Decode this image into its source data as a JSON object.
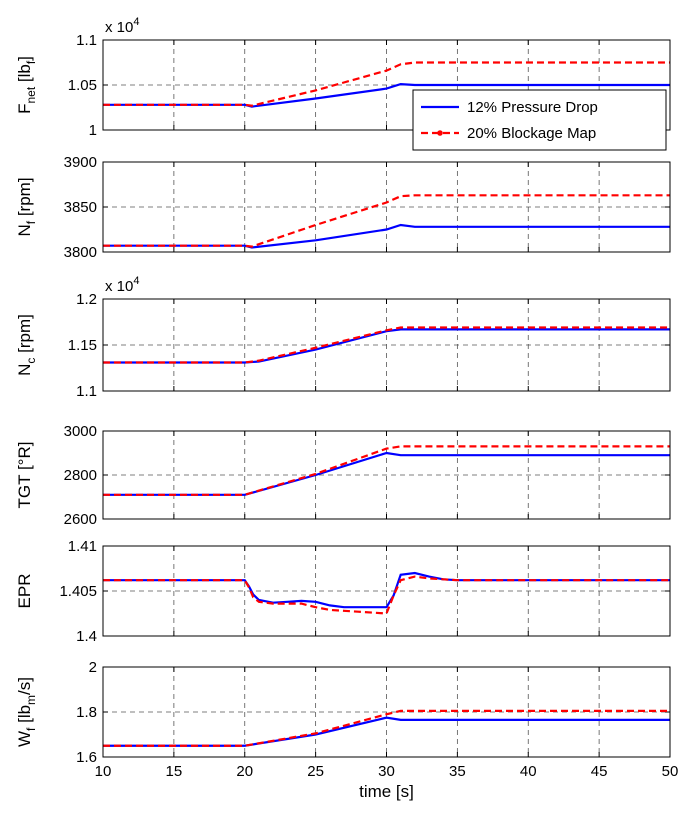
{
  "chart_data": [
    {
      "type": "line",
      "ylabel": "F",
      "ylabel_sub": "net",
      "ylabel_unit_pre": " [lb",
      "ylabel_unit_sub": "f",
      "ylabel_unit_post": "]",
      "exponent_label": "x 10",
      "exponent_power": "4",
      "xlim": [
        10,
        50
      ],
      "ylim": [
        1.0,
        1.1
      ],
      "yticks": [
        "1",
        "1.05",
        "1.1"
      ],
      "ytick_values": [
        1.0,
        1.05,
        1.1
      ],
      "grid": true,
      "legend": "inside-bottom-right",
      "series": [
        {
          "name": "12% Pressure Drop",
          "color": "#0000ff",
          "dash": "solid",
          "x": [
            10,
            20,
            20.5,
            25,
            30,
            31,
            32,
            50
          ],
          "y": [
            1.028,
            1.028,
            1.026,
            1.035,
            1.046,
            1.051,
            1.05,
            1.05
          ]
        },
        {
          "name": "20% Blockage Map",
          "color": "#ff0000",
          "dash": "dashed",
          "x": [
            10,
            20,
            20.5,
            25,
            30,
            31,
            32,
            50
          ],
          "y": [
            1.028,
            1.028,
            1.027,
            1.044,
            1.066,
            1.073,
            1.075,
            1.075
          ]
        }
      ]
    },
    {
      "type": "line",
      "ylabel": "N",
      "ylabel_sub": "f",
      "ylabel_unit_pre": " [rpm]",
      "xlim": [
        10,
        50
      ],
      "ylim": [
        3800,
        3900
      ],
      "yticks": [
        "3800",
        "3850",
        "3900"
      ],
      "ytick_values": [
        3800,
        3850,
        3900
      ],
      "grid": true,
      "series": [
        {
          "name": "12% Pressure Drop",
          "color": "#0000ff",
          "dash": "solid",
          "x": [
            10,
            20,
            20.5,
            25,
            30,
            31,
            32,
            50
          ],
          "y": [
            3807,
            3807,
            3805,
            3813,
            3825,
            3830,
            3828,
            3828
          ]
        },
        {
          "name": "20% Blockage Map",
          "color": "#ff0000",
          "dash": "dashed",
          "x": [
            10,
            20,
            20.5,
            25,
            30,
            31,
            32,
            50
          ],
          "y": [
            3807,
            3807,
            3806,
            3830,
            3855,
            3862,
            3863,
            3863
          ]
        }
      ]
    },
    {
      "type": "line",
      "ylabel": "N",
      "ylabel_sub": "c",
      "ylabel_unit_pre": " [rpm]",
      "exponent_label": "x 10",
      "exponent_power": "4",
      "xlim": [
        10,
        50
      ],
      "ylim": [
        1.1,
        1.2
      ],
      "yticks": [
        "1.1",
        "1.15",
        "1.2"
      ],
      "ytick_values": [
        1.1,
        1.15,
        1.2
      ],
      "grid": true,
      "series": [
        {
          "name": "12% Pressure Drop",
          "color": "#0000ff",
          "dash": "solid",
          "x": [
            10,
            20,
            21,
            25,
            30,
            31,
            50
          ],
          "y": [
            1.131,
            1.131,
            1.132,
            1.145,
            1.165,
            1.167,
            1.167
          ]
        },
        {
          "name": "20% Blockage Map",
          "color": "#ff0000",
          "dash": "dashed",
          "x": [
            10,
            20,
            21,
            25,
            30,
            31,
            50
          ],
          "y": [
            1.131,
            1.131,
            1.133,
            1.147,
            1.166,
            1.169,
            1.169
          ]
        }
      ]
    },
    {
      "type": "line",
      "ylabel": "TGT [",
      "ylabel_sub": "",
      "ylabel_unit_pre": "°R]",
      "xlim": [
        10,
        50
      ],
      "ylim": [
        2600,
        3000
      ],
      "yticks": [
        "2600",
        "2800",
        "3000"
      ],
      "ytick_values": [
        2600,
        2800,
        3000
      ],
      "grid": true,
      "series": [
        {
          "name": "12% Pressure Drop",
          "color": "#0000ff",
          "dash": "solid",
          "x": [
            10,
            20,
            25,
            30,
            31,
            50
          ],
          "y": [
            2710,
            2710,
            2800,
            2900,
            2890,
            2890
          ]
        },
        {
          "name": "20% Blockage Map",
          "color": "#ff0000",
          "dash": "dashed",
          "x": [
            10,
            20,
            25,
            30,
            31,
            50
          ],
          "y": [
            2710,
            2710,
            2805,
            2920,
            2930,
            2930
          ]
        }
      ]
    },
    {
      "type": "line",
      "ylabel": "EPR",
      "ylabel_sub": "",
      "ylabel_unit_pre": "",
      "xlim": [
        10,
        50
      ],
      "ylim": [
        1.4,
        1.41
      ],
      "yticks": [
        "1.4",
        "1.405",
        "1.41"
      ],
      "ytick_values": [
        1.4,
        1.405,
        1.41
      ],
      "grid": true,
      "series": [
        {
          "name": "12% Pressure Drop",
          "color": "#0000ff",
          "dash": "solid",
          "x": [
            10,
            20,
            20.3,
            20.6,
            21,
            22,
            23,
            24,
            25,
            26,
            27,
            28,
            29,
            30,
            30.5,
            31,
            32,
            33,
            34,
            35,
            50
          ],
          "y": [
            1.4062,
            1.4062,
            1.4055,
            1.4046,
            1.404,
            1.4037,
            1.4038,
            1.4039,
            1.4038,
            1.4034,
            1.4032,
            1.4032,
            1.4032,
            1.4032,
            1.4045,
            1.4068,
            1.407,
            1.4066,
            1.4063,
            1.4062,
            1.4062
          ]
        },
        {
          "name": "20% Blockage Map",
          "color": "#ff0000",
          "dash": "dashed",
          "x": [
            10,
            20,
            20.3,
            20.6,
            21,
            22,
            23,
            24,
            25,
            26,
            27,
            28,
            29,
            30,
            30.5,
            31,
            32,
            33,
            34,
            35,
            50
          ],
          "y": [
            1.4062,
            1.4062,
            1.4054,
            1.4043,
            1.4038,
            1.4036,
            1.4036,
            1.4036,
            1.4032,
            1.4029,
            1.4028,
            1.4027,
            1.4026,
            1.4025,
            1.4045,
            1.4062,
            1.4066,
            1.4064,
            1.4063,
            1.4062,
            1.4062
          ]
        }
      ]
    },
    {
      "type": "line",
      "ylabel": "W",
      "ylabel_sub": "f",
      "ylabel_unit_pre": " [lb",
      "ylabel_unit_sub": "m",
      "ylabel_unit_post": "/s]",
      "xlabel": "time [s]",
      "xlim": [
        10,
        50
      ],
      "ylim": [
        1.6,
        2.0
      ],
      "yticks": [
        "1.6",
        "1.8",
        "2"
      ],
      "ytick_values": [
        1.6,
        1.8,
        2.0
      ],
      "xticks": [
        "10",
        "15",
        "20",
        "25",
        "30",
        "35",
        "40",
        "45",
        "50"
      ],
      "grid": true,
      "series": [
        {
          "name": "12% Pressure Drop",
          "color": "#0000ff",
          "dash": "solid",
          "x": [
            10,
            20,
            25,
            30,
            31,
            50
          ],
          "y": [
            1.65,
            1.65,
            1.7,
            1.775,
            1.765,
            1.765
          ]
        },
        {
          "name": "20% Blockage Map",
          "color": "#ff0000",
          "dash": "dashed",
          "x": [
            10,
            20,
            25,
            30,
            31,
            50
          ],
          "y": [
            1.65,
            1.65,
            1.705,
            1.79,
            1.805,
            1.805
          ]
        }
      ]
    }
  ]
}
